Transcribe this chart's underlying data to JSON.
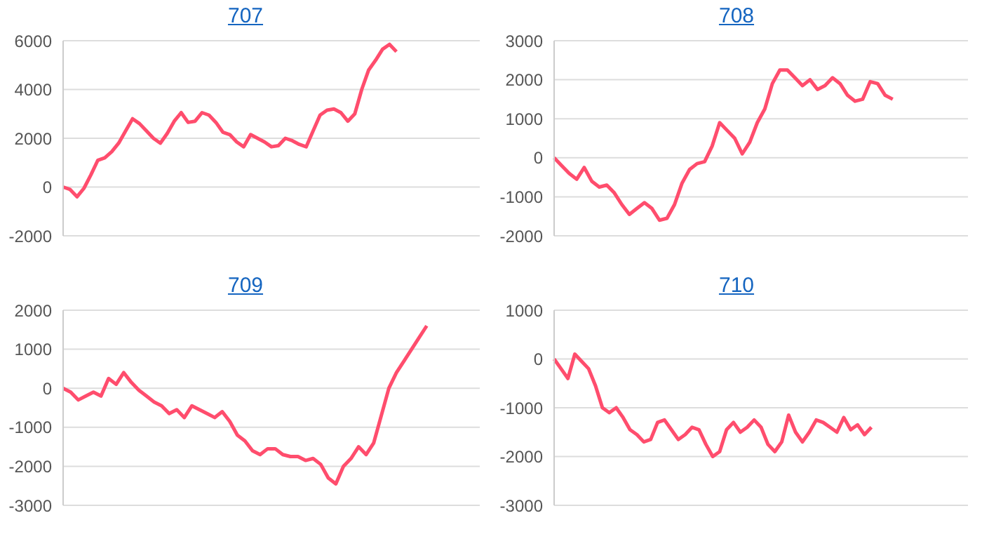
{
  "chart_data": [
    {
      "type": "line",
      "title": "707",
      "categories": [
        null,
        null,
        null,
        null,
        null,
        null,
        null,
        null,
        null,
        null,
        null,
        null,
        null,
        null,
        null,
        null,
        null,
        null,
        null,
        null,
        null,
        null,
        null,
        null,
        null,
        null,
        null,
        null,
        null,
        null,
        null,
        null,
        null,
        null,
        null,
        null,
        null,
        null,
        null,
        null,
        null,
        null,
        null,
        null,
        null,
        null,
        null,
        null,
        null,
        null,
        null,
        null,
        null,
        null,
        null,
        null,
        null,
        null,
        null,
        null,
        null
      ],
      "series": [
        {
          "color": "#ff4d6d",
          "values": [
            0,
            -100,
            -400,
            -50,
            500,
            1100,
            1200,
            1450,
            1800,
            2300,
            2800,
            2600,
            2300,
            2000,
            1800,
            2200,
            2700,
            3050,
            2650,
            2700,
            3050,
            2950,
            2650,
            2250,
            2150,
            1850,
            1650,
            2150,
            2000,
            1850,
            1650,
            1700,
            2000,
            1900,
            1750,
            1650,
            2300,
            2950,
            3150,
            3200,
            3050,
            2700,
            3000,
            4000,
            4800,
            5200,
            5650,
            5850,
            5550,
            null,
            null,
            null,
            null,
            null,
            null,
            null,
            null,
            null,
            null,
            null,
            null
          ]
        }
      ],
      "ylim": [
        -2000,
        6000
      ],
      "yticks": [
        -2000,
        0,
        2000,
        4000,
        6000
      ],
      "grid": "y",
      "legend": false,
      "marker": "none",
      "line_style": "solid"
    },
    {
      "type": "line",
      "title": "708",
      "categories": [
        null,
        null,
        null,
        null,
        null,
        null,
        null,
        null,
        null,
        null,
        null,
        null,
        null,
        null,
        null,
        null,
        null,
        null,
        null,
        null,
        null,
        null,
        null,
        null,
        null,
        null,
        null,
        null,
        null,
        null,
        null,
        null,
        null,
        null,
        null,
        null,
        null,
        null,
        null,
        null,
        null,
        null,
        null,
        null,
        null,
        null,
        null,
        null,
        null,
        null,
        null,
        null,
        null,
        null,
        null,
        null
      ],
      "series": [
        {
          "color": "#ff4d6d",
          "values": [
            0,
            -200,
            -400,
            -550,
            -250,
            -600,
            -750,
            -700,
            -900,
            -1200,
            -1450,
            -1300,
            -1150,
            -1300,
            -1600,
            -1550,
            -1200,
            -650,
            -300,
            -150,
            -100,
            300,
            900,
            700,
            500,
            100,
            400,
            900,
            1250,
            1900,
            2250,
            2250,
            2050,
            1850,
            2000,
            1750,
            1850,
            2050,
            1900,
            1600,
            1450,
            1500,
            1950,
            1900,
            1600,
            1500,
            null,
            null,
            null,
            null,
            null,
            null,
            null,
            null,
            null,
            null
          ]
        }
      ],
      "ylim": [
        -2000,
        3000
      ],
      "yticks": [
        -2000,
        -1000,
        0,
        1000,
        2000,
        3000
      ],
      "grid": "y",
      "legend": false,
      "marker": "none",
      "line_style": "solid"
    },
    {
      "type": "line",
      "title": "709",
      "categories": [
        null,
        null,
        null,
        null,
        null,
        null,
        null,
        null,
        null,
        null,
        null,
        null,
        null,
        null,
        null,
        null,
        null,
        null,
        null,
        null,
        null,
        null,
        null,
        null,
        null,
        null,
        null,
        null,
        null,
        null,
        null,
        null,
        null,
        null,
        null,
        null,
        null,
        null,
        null,
        null,
        null,
        null,
        null,
        null,
        null,
        null,
        null,
        null,
        null,
        null,
        null,
        null,
        null,
        null,
        null,
        null
      ],
      "series": [
        {
          "color": "#ff4d6d",
          "values": [
            0,
            -100,
            -300,
            -200,
            -100,
            -200,
            250,
            100,
            400,
            150,
            -50,
            -200,
            -350,
            -450,
            -650,
            -550,
            -750,
            -450,
            -550,
            -650,
            -750,
            -600,
            -850,
            -1200,
            -1350,
            -1600,
            -1700,
            -1550,
            -1550,
            -1700,
            -1750,
            -1750,
            -1850,
            -1800,
            -1950,
            -2300,
            -2450,
            -2000,
            -1800,
            -1500,
            -1700,
            -1400,
            -700,
            0,
            400,
            700,
            1000,
            1300,
            1600,
            null,
            null,
            null,
            null,
            null,
            null,
            null
          ]
        }
      ],
      "ylim": [
        -3000,
        2000
      ],
      "yticks": [
        -3000,
        -2000,
        -1000,
        0,
        1000,
        2000
      ],
      "grid": "y",
      "legend": false,
      "marker": "none",
      "line_style": "solid"
    },
    {
      "type": "line",
      "title": "710",
      "categories": [
        null,
        null,
        null,
        null,
        null,
        null,
        null,
        null,
        null,
        null,
        null,
        null,
        null,
        null,
        null,
        null,
        null,
        null,
        null,
        null,
        null,
        null,
        null,
        null,
        null,
        null,
        null,
        null,
        null,
        null,
        null,
        null,
        null,
        null,
        null,
        null,
        null,
        null,
        null,
        null,
        null,
        null,
        null,
        null,
        null,
        null,
        null,
        null,
        null,
        null,
        null,
        null,
        null,
        null,
        null,
        null,
        null,
        null,
        null,
        null,
        null
      ],
      "series": [
        {
          "color": "#ff4d6d",
          "values": [
            0,
            -200,
            -400,
            100,
            -50,
            -200,
            -550,
            -1000,
            -1100,
            -1000,
            -1200,
            -1450,
            -1550,
            -1700,
            -1650,
            -1300,
            -1250,
            -1450,
            -1650,
            -1550,
            -1400,
            -1450,
            -1750,
            -2000,
            -1900,
            -1450,
            -1300,
            -1500,
            -1400,
            -1250,
            -1400,
            -1750,
            -1900,
            -1700,
            -1150,
            -1500,
            -1700,
            -1500,
            -1250,
            -1300,
            -1400,
            -1500,
            -1200,
            -1450,
            -1350,
            -1550,
            -1400,
            null,
            null,
            null,
            null,
            null,
            null,
            null,
            null,
            null,
            null,
            null,
            null,
            null,
            null
          ]
        }
      ],
      "ylim": [
        -3000,
        1000
      ],
      "yticks": [
        -3000,
        -2000,
        -1000,
        0,
        1000
      ],
      "grid": "y",
      "legend": false,
      "marker": "none",
      "line_style": "solid"
    }
  ]
}
